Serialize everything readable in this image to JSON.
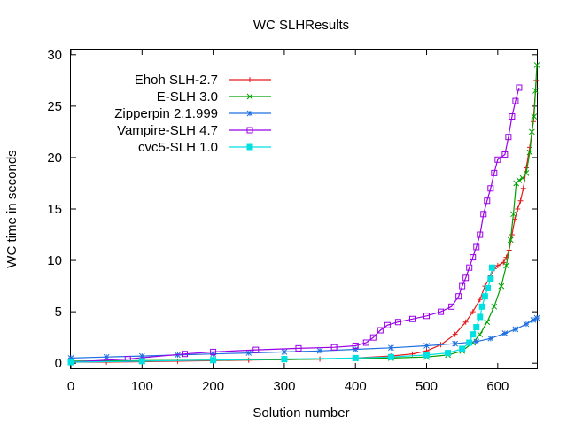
{
  "chart_data": {
    "type": "line",
    "title": "WC SLHResults",
    "xlabel": "Solution number",
    "ylabel": "WC time in seconds",
    "xlim": [
      0,
      655
    ],
    "ylim": [
      -0.5,
      30.5
    ],
    "xticks": [
      0,
      100,
      200,
      300,
      400,
      500,
      600
    ],
    "yticks": [
      0,
      5,
      10,
      15,
      20,
      25,
      30
    ],
    "grid": false,
    "legend_position": "top-left",
    "series": [
      {
        "name": "Ehoh SLH-2.7",
        "color": "#e41a1c",
        "marker": "plus",
        "points": [
          [
            0,
            0.1
          ],
          [
            50,
            0.1
          ],
          [
            100,
            0.15
          ],
          [
            150,
            0.2
          ],
          [
            200,
            0.25
          ],
          [
            250,
            0.3
          ],
          [
            300,
            0.35
          ],
          [
            350,
            0.4
          ],
          [
            400,
            0.5
          ],
          [
            450,
            0.7
          ],
          [
            480,
            0.9
          ],
          [
            500,
            1.2
          ],
          [
            520,
            1.8
          ],
          [
            540,
            2.8
          ],
          [
            555,
            4.0
          ],
          [
            565,
            5.0
          ],
          [
            575,
            6.2
          ],
          [
            582,
            7.5
          ],
          [
            590,
            8.5
          ],
          [
            595,
            9.2
          ],
          [
            600,
            9.5
          ],
          [
            608,
            9.8
          ],
          [
            612,
            10.3
          ],
          [
            616,
            11.0
          ],
          [
            620,
            12.5
          ],
          [
            624,
            14.0
          ],
          [
            628,
            15.0
          ],
          [
            632,
            15.8
          ],
          [
            636,
            17.0
          ],
          [
            640,
            19.0
          ],
          [
            645,
            21.0
          ],
          [
            650,
            23.5
          ],
          [
            654,
            27.5
          ]
        ]
      },
      {
        "name": "E-SLH 3.0",
        "color": "#00a000",
        "marker": "x",
        "points": [
          [
            0,
            0.2
          ],
          [
            100,
            0.25
          ],
          [
            200,
            0.3
          ],
          [
            300,
            0.35
          ],
          [
            400,
            0.45
          ],
          [
            450,
            0.5
          ],
          [
            500,
            0.6
          ],
          [
            530,
            0.8
          ],
          [
            550,
            1.2
          ],
          [
            565,
            2.0
          ],
          [
            575,
            2.8
          ],
          [
            585,
            4.0
          ],
          [
            595,
            5.5
          ],
          [
            605,
            7.5
          ],
          [
            612,
            9.5
          ],
          [
            618,
            12.0
          ],
          [
            622,
            14.5
          ],
          [
            626,
            17.5
          ],
          [
            630,
            17.8
          ],
          [
            635,
            18.0
          ],
          [
            640,
            18.5
          ],
          [
            645,
            20.5
          ],
          [
            648,
            22.5
          ],
          [
            651,
            24.0
          ],
          [
            653,
            26.5
          ],
          [
            655,
            29.0
          ]
        ]
      },
      {
        "name": "Zipperpin 2.1.999",
        "color": "#1f6fe0",
        "marker": "star",
        "points": [
          [
            0,
            0.5
          ],
          [
            50,
            0.6
          ],
          [
            100,
            0.7
          ],
          [
            150,
            0.8
          ],
          [
            200,
            0.9
          ],
          [
            250,
            1.0
          ],
          [
            300,
            1.1
          ],
          [
            350,
            1.2
          ],
          [
            400,
            1.35
          ],
          [
            450,
            1.5
          ],
          [
            500,
            1.7
          ],
          [
            540,
            1.9
          ],
          [
            570,
            2.1
          ],
          [
            590,
            2.4
          ],
          [
            610,
            2.9
          ],
          [
            625,
            3.3
          ],
          [
            640,
            3.8
          ],
          [
            650,
            4.2
          ],
          [
            655,
            4.4
          ]
        ]
      },
      {
        "name": "Vampire-SLH 4.7",
        "color": "#9a00e6",
        "marker": "square",
        "points": [
          [
            0,
            0.1
          ],
          [
            80,
            0.4
          ],
          [
            160,
            0.9
          ],
          [
            200,
            1.1
          ],
          [
            260,
            1.3
          ],
          [
            320,
            1.45
          ],
          [
            370,
            1.55
          ],
          [
            400,
            1.7
          ],
          [
            415,
            2.0
          ],
          [
            425,
            2.5
          ],
          [
            435,
            3.2
          ],
          [
            445,
            3.7
          ],
          [
            460,
            4.0
          ],
          [
            480,
            4.3
          ],
          [
            500,
            4.6
          ],
          [
            520,
            5.0
          ],
          [
            535,
            5.5
          ],
          [
            545,
            6.5
          ],
          [
            550,
            7.5
          ],
          [
            555,
            8.3
          ],
          [
            560,
            9.3
          ],
          [
            565,
            10.3
          ],
          [
            570,
            11.3
          ],
          [
            575,
            12.5
          ],
          [
            580,
            14.5
          ],
          [
            585,
            15.8
          ],
          [
            590,
            17.0
          ],
          [
            595,
            18.5
          ],
          [
            600,
            19.8
          ],
          [
            610,
            20.3
          ],
          [
            615,
            22.0
          ],
          [
            620,
            24.0
          ],
          [
            625,
            25.5
          ],
          [
            630,
            26.8
          ]
        ]
      },
      {
        "name": "cvc5-SLH 1.0",
        "color": "#00e0e0",
        "marker": "filled-square",
        "points": [
          [
            0,
            0.1
          ],
          [
            100,
            0.2
          ],
          [
            200,
            0.3
          ],
          [
            300,
            0.4
          ],
          [
            400,
            0.5
          ],
          [
            450,
            0.6
          ],
          [
            500,
            0.8
          ],
          [
            530,
            1.0
          ],
          [
            550,
            1.4
          ],
          [
            560,
            2.0
          ],
          [
            565,
            2.8
          ],
          [
            570,
            3.5
          ],
          [
            575,
            4.5
          ],
          [
            578,
            5.5
          ],
          [
            582,
            6.5
          ],
          [
            586,
            7.3
          ],
          [
            590,
            8.2
          ],
          [
            592,
            9.3
          ]
        ]
      }
    ]
  }
}
